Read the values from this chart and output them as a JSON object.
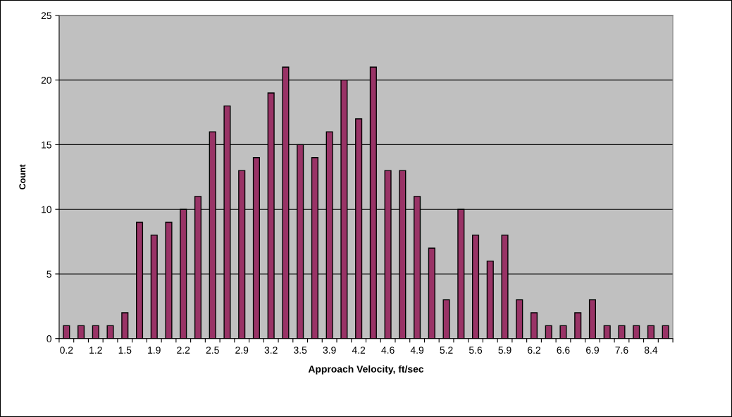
{
  "chart_data": {
    "type": "bar",
    "xlabel": "Approach Velocity, ft/sec",
    "ylabel": "Count",
    "categories": [
      "0.2",
      null,
      "1.2",
      null,
      "1.5",
      null,
      "1.9",
      null,
      "2.2",
      null,
      "2.5",
      null,
      "2.9",
      null,
      "3.2",
      null,
      "3.5",
      null,
      "3.9",
      null,
      "4.2",
      null,
      "4.6",
      null,
      "4.9",
      null,
      "5.2",
      null,
      "5.6",
      null,
      "5.9",
      null,
      "6.2",
      null,
      "6.6",
      null,
      "6.9",
      null,
      "7.6",
      null,
      "8.4",
      null
    ],
    "values": [
      1,
      1,
      1,
      1,
      2,
      9,
      8,
      9,
      10,
      11,
      16,
      18,
      13,
      14,
      19,
      21,
      15,
      14,
      16,
      20,
      17,
      21,
      13,
      13,
      11,
      7,
      3,
      10,
      8,
      6,
      8,
      3,
      2,
      1,
      1,
      2,
      3,
      1,
      1,
      1,
      1,
      1
    ],
    "color": "#993366",
    "ylim": [
      0,
      25
    ],
    "yticks": [
      0,
      5,
      10,
      15,
      20,
      25
    ],
    "grid": "y",
    "legend": false
  }
}
